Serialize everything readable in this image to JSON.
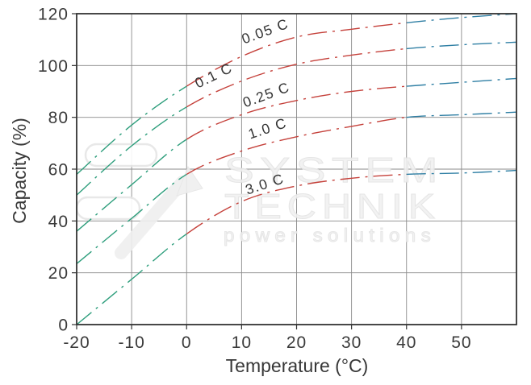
{
  "axes": {
    "xlabel": "Temperature (°C)",
    "ylabel": "Capacity (%)",
    "xlim": [
      -20,
      60
    ],
    "ylim": [
      0,
      120
    ],
    "xticks": [
      -20,
      -10,
      0,
      10,
      20,
      30,
      40,
      50
    ],
    "yticks": [
      0,
      20,
      40,
      60,
      80,
      100,
      120
    ],
    "grid": true,
    "grid_color": "#8a8a8a",
    "frame_color": "#333333"
  },
  "chart_data": {
    "type": "line",
    "x": [
      -20,
      -10,
      0,
      10,
      20,
      30,
      40,
      50,
      60
    ],
    "series": [
      {
        "name": "0.05 C",
        "values": [
          58,
          77,
          92,
          103.5,
          111,
          114,
          116.5,
          118.5,
          120
        ],
        "label": {
          "x": 14.6,
          "y": 111.5,
          "rot": -20
        }
      },
      {
        "name": "0.1 C",
        "values": [
          50,
          69,
          84,
          94,
          100.5,
          104,
          106.5,
          108,
          109
        ],
        "label": {
          "x": 5.3,
          "y": 94.5,
          "rot": -26
        }
      },
      {
        "name": "0.25 C",
        "values": [
          36,
          54,
          71.5,
          81,
          86.5,
          90,
          92,
          93.5,
          95
        ],
        "label": {
          "x": 14.8,
          "y": 87.0,
          "rot": -20
        }
      },
      {
        "name": "1.0 C",
        "values": [
          23.5,
          41,
          58,
          67,
          72.5,
          76.5,
          80,
          81,
          82
        ],
        "label": {
          "x": 15.0,
          "y": 74.0,
          "rot": -18
        }
      },
      {
        "name": "3.0 C",
        "values": [
          0,
          17.5,
          35,
          47.5,
          53.5,
          56.5,
          58,
          58.5,
          59.5
        ],
        "label": {
          "x": 14.5,
          "y": 52.5,
          "rot": -18
        }
      }
    ],
    "style": {
      "line_style": "dash-dot",
      "segment_breaks": [
        0,
        40
      ],
      "segment_colors": {
        "cold": "#2E9E7C",
        "mid": "#C5413B",
        "hot": "#2F7FA4"
      }
    },
    "xlabel": "Temperature (°C)",
    "ylabel": "Capacity (%)",
    "legend": "inline-labels"
  },
  "watermark": {
    "line1": "SYSTEM",
    "line2": "TECHNIK",
    "line3": "power solutions"
  }
}
